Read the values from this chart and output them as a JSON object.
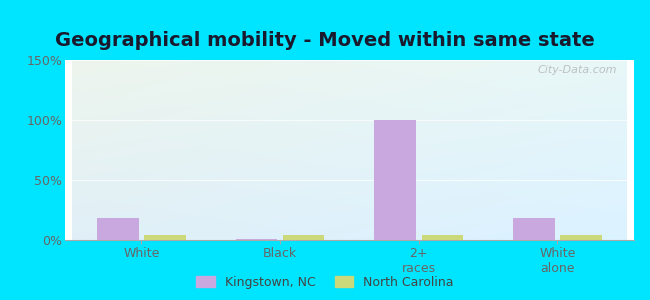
{
  "title": "Geographical mobility - Moved within same state",
  "categories": [
    "White",
    "Black",
    "2+\nraces",
    "White\nalone"
  ],
  "kingstown_values": [
    18,
    1,
    100,
    18
  ],
  "nc_values": [
    4,
    4,
    4,
    4
  ],
  "kingstown_color": "#c9a8e0",
  "nc_color": "#ccd97a",
  "ylim": [
    0,
    150
  ],
  "yticks": [
    0,
    50,
    100,
    150
  ],
  "ytick_labels": [
    "0%",
    "50%",
    "100%",
    "150%"
  ],
  "bg_outer": "#00e5ff",
  "watermark": "City-Data.com",
  "legend_kingstown": "Kingstown, NC",
  "legend_nc": "North Carolina",
  "title_fontsize": 14,
  "tick_fontsize": 9,
  "legend_fontsize": 9,
  "bar_width": 0.3,
  "bg_grad_top": "#e8f5e9",
  "bg_grad_mid": "#dff0e8",
  "bg_grad_right": "#d4eef0"
}
